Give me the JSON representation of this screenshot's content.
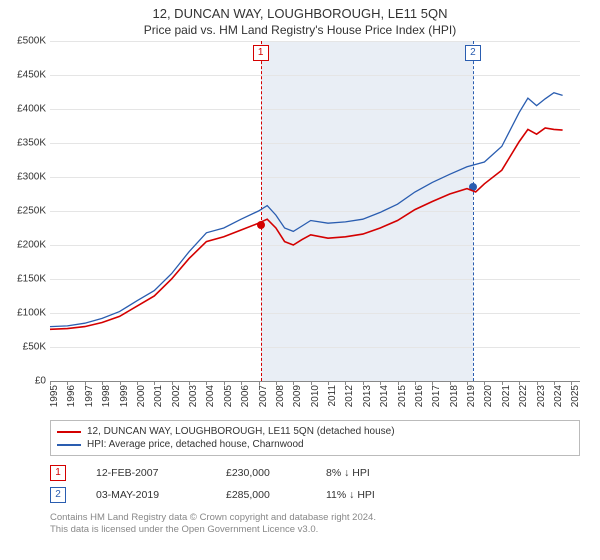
{
  "title_line1": "12, DUNCAN WAY, LOUGHBOROUGH, LE11 5QN",
  "title_line2": "Price paid vs. HM Land Registry's House Price Index (HPI)",
  "chart": {
    "type": "line",
    "background_color": "#ffffff",
    "grid_color": "#e5e5e5",
    "shade_color": "#e9eef5",
    "axis_color": "#888888",
    "ylim": [
      0,
      500000
    ],
    "ytick_step": 50000,
    "ylabels": [
      "£0",
      "£50K",
      "£100K",
      "£150K",
      "£200K",
      "£250K",
      "£300K",
      "£350K",
      "£400K",
      "£450K",
      "£500K"
    ],
    "x_years": [
      1995,
      1996,
      1997,
      1998,
      1999,
      2000,
      2001,
      2002,
      2003,
      2004,
      2005,
      2006,
      2007,
      2008,
      2009,
      2010,
      2011,
      2012,
      2013,
      2014,
      2015,
      2016,
      2017,
      2018,
      2019,
      2020,
      2021,
      2022,
      2023,
      2024,
      2025
    ],
    "x_min": 1995,
    "x_max": 2025.5,
    "shade_start": 2007.12,
    "shade_end": 2019.34,
    "series": [
      {
        "name": "price_paid",
        "label": "12, DUNCAN WAY, LOUGHBOROUGH, LE11 5QN (detached house)",
        "color": "#d40000",
        "width": 1.6,
        "points": [
          [
            1995,
            76000
          ],
          [
            1996,
            77000
          ],
          [
            1997,
            80000
          ],
          [
            1998,
            86000
          ],
          [
            1999,
            95000
          ],
          [
            2000,
            110000
          ],
          [
            2001,
            125000
          ],
          [
            2002,
            150000
          ],
          [
            2003,
            180000
          ],
          [
            2004,
            205000
          ],
          [
            2005,
            212000
          ],
          [
            2006,
            222000
          ],
          [
            2007,
            232000
          ],
          [
            2007.5,
            238000
          ],
          [
            2008,
            225000
          ],
          [
            2008.5,
            205000
          ],
          [
            2009,
            200000
          ],
          [
            2009.5,
            208000
          ],
          [
            2010,
            215000
          ],
          [
            2011,
            210000
          ],
          [
            2012,
            212000
          ],
          [
            2013,
            216000
          ],
          [
            2014,
            225000
          ],
          [
            2015,
            236000
          ],
          [
            2016,
            252000
          ],
          [
            2017,
            264000
          ],
          [
            2018,
            275000
          ],
          [
            2019,
            283000
          ],
          [
            2019.5,
            278000
          ],
          [
            2020,
            290000
          ],
          [
            2021,
            310000
          ],
          [
            2022,
            352000
          ],
          [
            2022.5,
            370000
          ],
          [
            2023,
            363000
          ],
          [
            2023.5,
            372000
          ],
          [
            2024,
            370000
          ],
          [
            2024.5,
            369000
          ]
        ]
      },
      {
        "name": "hpi",
        "label": "HPI: Average price, detached house, Charnwood",
        "color": "#2a5db0",
        "width": 1.3,
        "points": [
          [
            1995,
            80000
          ],
          [
            1996,
            81000
          ],
          [
            1997,
            85000
          ],
          [
            1998,
            92000
          ],
          [
            1999,
            102000
          ],
          [
            2000,
            118000
          ],
          [
            2001,
            133000
          ],
          [
            2002,
            158000
          ],
          [
            2003,
            190000
          ],
          [
            2004,
            218000
          ],
          [
            2005,
            225000
          ],
          [
            2006,
            238000
          ],
          [
            2007,
            250000
          ],
          [
            2007.5,
            258000
          ],
          [
            2008,
            244000
          ],
          [
            2008.5,
            225000
          ],
          [
            2009,
            220000
          ],
          [
            2009.5,
            228000
          ],
          [
            2010,
            236000
          ],
          [
            2011,
            232000
          ],
          [
            2012,
            234000
          ],
          [
            2013,
            238000
          ],
          [
            2014,
            248000
          ],
          [
            2015,
            260000
          ],
          [
            2016,
            278000
          ],
          [
            2017,
            292000
          ],
          [
            2018,
            304000
          ],
          [
            2019,
            315000
          ],
          [
            2020,
            322000
          ],
          [
            2021,
            345000
          ],
          [
            2022,
            395000
          ],
          [
            2022.5,
            416000
          ],
          [
            2023,
            405000
          ],
          [
            2023.5,
            415000
          ],
          [
            2024,
            424000
          ],
          [
            2024.5,
            420000
          ]
        ]
      }
    ],
    "markers": [
      {
        "n": "1",
        "year": 2007.12,
        "color": "#d40000",
        "dot_y": 230000
      },
      {
        "n": "2",
        "year": 2019.34,
        "color": "#2a5db0",
        "dot_y": 285000
      }
    ]
  },
  "legend": {
    "items": [
      {
        "color": "#d40000",
        "label": "12, DUNCAN WAY, LOUGHBOROUGH, LE11 5QN (detached house)"
      },
      {
        "color": "#2a5db0",
        "label": "HPI: Average price, detached house, Charnwood"
      }
    ]
  },
  "transactions": [
    {
      "n": "1",
      "color": "#d40000",
      "date": "12-FEB-2007",
      "price": "£230,000",
      "diff": "8% ↓ HPI"
    },
    {
      "n": "2",
      "color": "#2a5db0",
      "date": "03-MAY-2019",
      "price": "£285,000",
      "diff": "11% ↓ HPI"
    }
  ],
  "footnote_l1": "Contains HM Land Registry data © Crown copyright and database right 2024.",
  "footnote_l2": "This data is licensed under the Open Government Licence v3.0."
}
